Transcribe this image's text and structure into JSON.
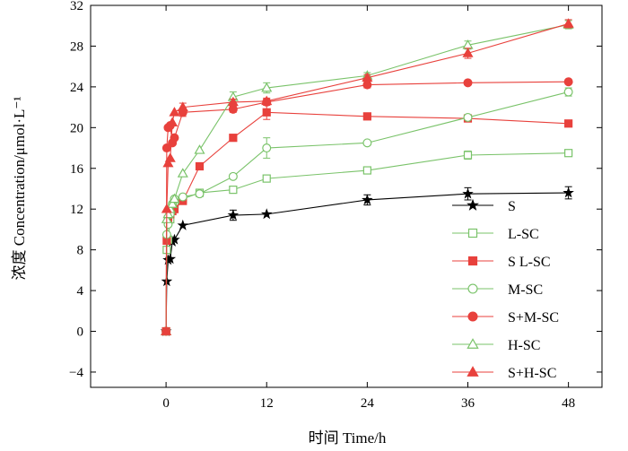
{
  "chart_data": {
    "type": "line",
    "xlabel": "时间 Time/h",
    "ylabel": "浓度 Concentration/μmol·L⁻¹",
    "xlim": [
      -9,
      52
    ],
    "ylim": [
      -5.5,
      32
    ],
    "xticks": [
      0,
      12,
      24,
      36,
      48
    ],
    "yticks": [
      -4,
      0,
      4,
      8,
      12,
      16,
      20,
      24,
      28,
      32
    ],
    "grid": false,
    "legend_position": "bottom-right",
    "series": [
      {
        "name": "S",
        "color": "#000000",
        "marker": "star",
        "filled": true,
        "x": [
          0,
          0.083,
          0.25,
          0.5,
          0.75,
          1,
          2,
          8,
          12,
          24,
          36,
          48
        ],
        "y": [
          0,
          4.9,
          7.0,
          7.1,
          8.8,
          9.0,
          10.4,
          11.4,
          11.5,
          12.9,
          13.5,
          13.6
        ],
        "err": [
          0,
          0,
          0,
          0,
          0,
          0,
          0,
          0.5,
          0,
          0.5,
          0.6,
          0.6
        ]
      },
      {
        "name": "L-SC",
        "color": "#7ac36a",
        "marker": "square",
        "filled": false,
        "x": [
          0,
          0.083,
          0.25,
          0.5,
          0.75,
          1,
          2,
          4,
          8,
          12,
          24,
          36,
          48
        ],
        "y": [
          0,
          8.0,
          9.0,
          11.0,
          12.0,
          12.5,
          13.0,
          13.6,
          13.9,
          15.0,
          15.8,
          17.3,
          17.5
        ],
        "err": [
          0,
          0,
          0,
          0,
          0,
          0,
          0,
          0,
          0,
          0.3,
          0.3,
          0.4,
          0.3
        ]
      },
      {
        "name": "S L-SC",
        "color": "#e8413c",
        "marker": "square",
        "filled": true,
        "x": [
          0,
          0.083,
          0.25,
          0.5,
          0.75,
          1,
          2,
          4,
          8,
          12,
          24,
          36,
          48
        ],
        "y": [
          0,
          8.9,
          11.0,
          11.5,
          11.8,
          12.0,
          12.8,
          16.2,
          19.0,
          21.5,
          21.1,
          20.9,
          20.4
        ],
        "err": [
          0,
          0,
          0,
          0,
          0,
          0,
          0,
          0,
          0,
          0.7,
          0,
          0,
          0
        ]
      },
      {
        "name": "M-SC",
        "color": "#7ac36a",
        "marker": "circle",
        "filled": false,
        "x": [
          0,
          0.083,
          0.25,
          0.5,
          0.75,
          1,
          2,
          4,
          8,
          12,
          24,
          36,
          48
        ],
        "y": [
          0,
          9.5,
          10.5,
          11.5,
          12.5,
          13.0,
          13.2,
          13.5,
          15.2,
          18.0,
          18.5,
          21.0,
          23.5
        ],
        "err": [
          0,
          0,
          0,
          0,
          0,
          0,
          0,
          0,
          0,
          1.0,
          0,
          0,
          0.4
        ]
      },
      {
        "name": "S+M-SC",
        "color": "#e8413c",
        "marker": "circle",
        "filled": true,
        "x": [
          0,
          0.083,
          0.25,
          0.5,
          0.75,
          1,
          2,
          8,
          12,
          24,
          36,
          48
        ],
        "y": [
          0,
          18.0,
          20.0,
          20.2,
          18.5,
          19.0,
          21.5,
          21.8,
          22.5,
          24.2,
          24.4,
          24.5
        ],
        "err": [
          0,
          0,
          0,
          0,
          0,
          0,
          0.4,
          0.3,
          0.3,
          0.3,
          0,
          0
        ]
      },
      {
        "name": "H-SC",
        "color": "#7ac36a",
        "marker": "triangle",
        "filled": false,
        "x": [
          0,
          0.083,
          0.25,
          0.5,
          0.75,
          1,
          2,
          4,
          8,
          12,
          24,
          36,
          48
        ],
        "y": [
          0,
          11.0,
          11.5,
          12.0,
          12.5,
          13.0,
          15.5,
          17.8,
          23.0,
          23.9,
          25.1,
          28.1,
          30.1
        ],
        "err": [
          0,
          0,
          0,
          0,
          0,
          0,
          0,
          0,
          0.5,
          0.5,
          0.3,
          0.4,
          0.4
        ]
      },
      {
        "name": "S+H-SC",
        "color": "#e8413c",
        "marker": "triangle",
        "filled": true,
        "x": [
          0,
          0.083,
          0.25,
          0.5,
          0.75,
          1,
          2,
          8,
          12,
          24,
          36,
          48
        ],
        "y": [
          0,
          12.0,
          16.5,
          17.0,
          20.5,
          21.5,
          22.0,
          22.5,
          22.6,
          24.9,
          27.3,
          30.2
        ],
        "err": [
          0,
          0,
          0,
          0,
          0,
          0,
          0.4,
          0.3,
          0.3,
          0.3,
          0.5,
          0.4
        ]
      }
    ]
  }
}
